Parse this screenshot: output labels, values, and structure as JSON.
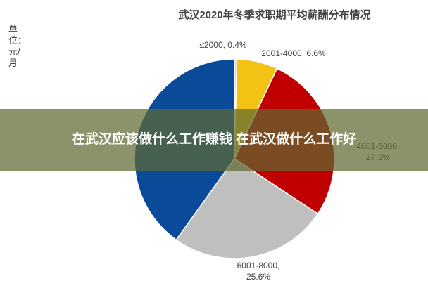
{
  "chart_data": {
    "type": "pie",
    "title": "武汉2020年冬季求职期平均薪酬分布情况",
    "unit_label": "单位：元/月",
    "values": [
      0.4,
      6.6,
      27.3,
      25.6,
      40.1
    ],
    "value_labels": [
      "≤2000, 0.4%",
      "2001-4000, 6.6%",
      "4001-6000, 27.3%",
      "6001-8000, 25.6%",
      null
    ],
    "colors": [
      "#d9d9d9",
      "#f2c314",
      "#c00000",
      "#bfbfbf",
      "#0b4a99"
    ]
  },
  "banner": {
    "text": "在武汉应该做什么工作赚钱 在武汉做什么工作好"
  }
}
